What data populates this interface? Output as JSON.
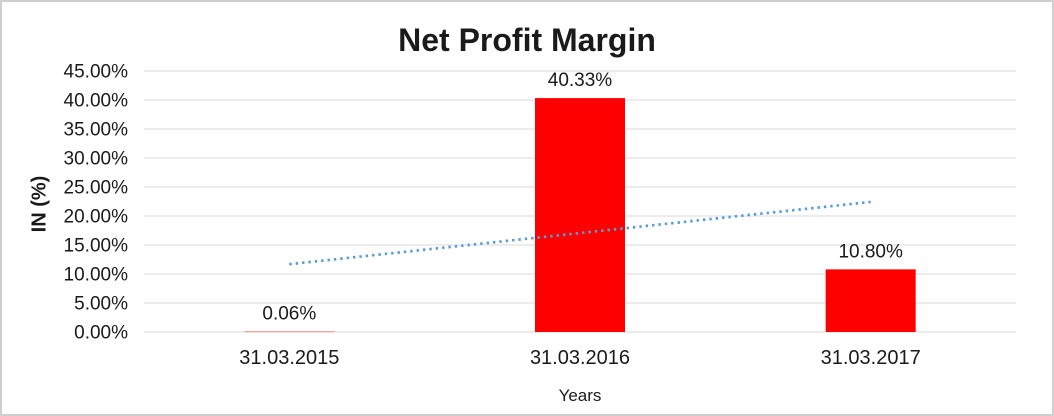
{
  "chart_data": {
    "type": "bar",
    "title": "Net Profit Margin",
    "xlabel": "Years",
    "ylabel": "IN (%)",
    "categories": [
      "31.03.2015",
      "31.03.2016",
      "31.03.2017"
    ],
    "series": [
      {
        "name": "Net Profit Margin",
        "values": [
          0.06,
          40.33,
          10.8
        ],
        "data_labels": [
          "0.06%",
          "40.33%",
          "10.80%"
        ],
        "color": "#ff0000"
      }
    ],
    "y_axis": {
      "min": 0,
      "max": 45,
      "step": 5,
      "tick_labels": [
        "0.00%",
        "5.00%",
        "10.00%",
        "15.00%",
        "20.00%",
        "25.00%",
        "30.00%",
        "35.00%",
        "40.00%",
        "45.00%"
      ]
    },
    "trendline": {
      "type": "linear",
      "style": "dotted",
      "color": "#5b9bd5",
      "start_value": 11.69,
      "end_value": 22.43
    },
    "grid": {
      "horizontal": true,
      "color": "#d9d9d9"
    },
    "legend": "none",
    "text_color": "#1a1a1a"
  }
}
